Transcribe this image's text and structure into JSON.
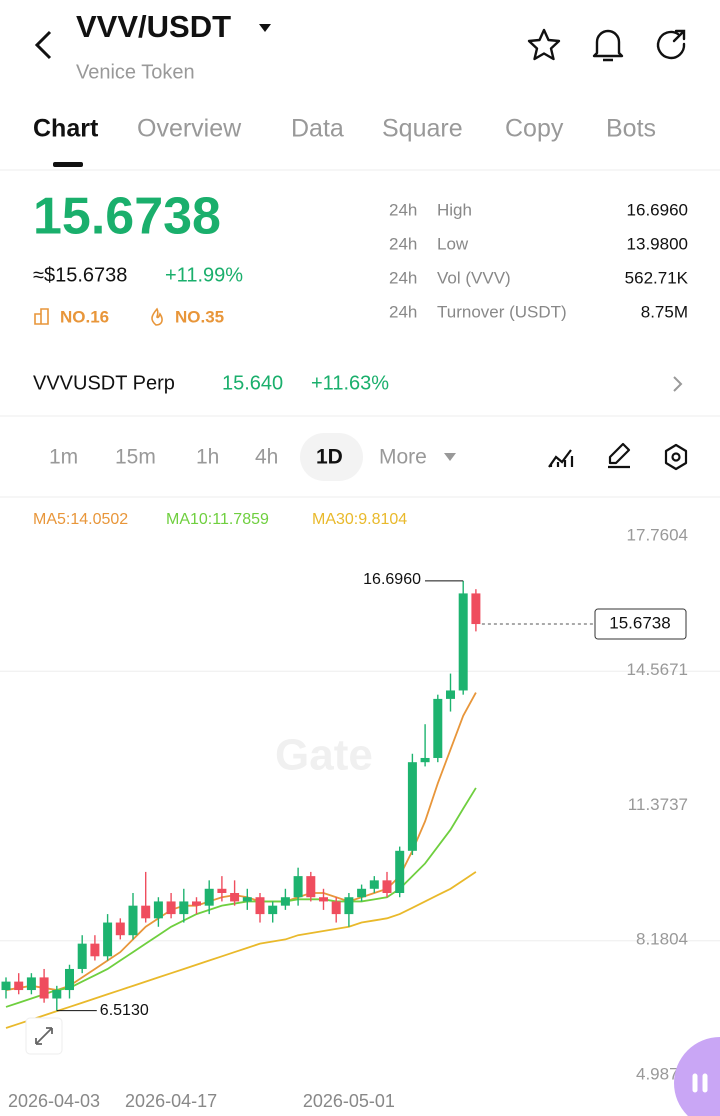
{
  "header": {
    "title": "VVV/USDT",
    "subtitle": "Venice Token"
  },
  "tabs": [
    "Chart",
    "Overview",
    "Data",
    "Square",
    "Copy",
    "Bots"
  ],
  "price": {
    "last": "15.6738",
    "usd": "≈$15.6738",
    "change": "+11.99%",
    "rank_volume": "NO.16",
    "rank_hot": "NO.35"
  },
  "stats": [
    {
      "period": "24h",
      "label": "High",
      "value": "16.6960"
    },
    {
      "period": "24h",
      "label": "Low",
      "value": "13.9800"
    },
    {
      "period": "24h",
      "label": "Vol (VVV)",
      "value": "562.71K"
    },
    {
      "period": "24h",
      "label": "Turnover (USDT)",
      "value": "8.75M"
    }
  ],
  "perp": {
    "name": "VVVUSDT Perp",
    "price": "15.640",
    "change": "+11.63%"
  },
  "intervals": [
    "1m",
    "15m",
    "1h",
    "4h",
    "1D",
    "More"
  ],
  "watermark": "Gate",
  "chart_data": {
    "type": "candlestick",
    "categories": [
      "2026-04-03",
      null,
      null,
      null,
      null,
      null,
      null,
      null,
      null,
      null,
      null,
      null,
      null,
      "2026-04-17",
      null,
      null,
      null,
      null,
      null,
      null,
      null,
      null,
      null,
      null,
      null,
      null,
      null,
      "2026-05-01",
      null,
      null,
      null,
      null,
      null,
      null,
      null,
      null,
      null,
      null
    ],
    "open": [
      7.0,
      7.2,
      7.0,
      7.3,
      6.8,
      7.0,
      7.5,
      8.1,
      7.8,
      8.6,
      8.3,
      9.0,
      8.7,
      9.1,
      8.8,
      9.1,
      9.0,
      9.4,
      9.3,
      9.1,
      9.2,
      8.8,
      9.0,
      9.2,
      9.7,
      9.2,
      9.1,
      8.8,
      9.2,
      9.4,
      9.6,
      9.3,
      10.3,
      12.4,
      12.5,
      13.9,
      14.1,
      16.4
    ],
    "high": [
      7.3,
      7.4,
      7.4,
      7.5,
      7.1,
      7.6,
      8.3,
      8.3,
      8.8,
      8.7,
      9.3,
      9.8,
      9.2,
      9.3,
      9.4,
      9.2,
      9.6,
      9.7,
      9.6,
      9.4,
      9.3,
      9.1,
      9.4,
      9.9,
      9.8,
      9.4,
      9.2,
      9.3,
      9.5,
      9.7,
      9.8,
      10.4,
      12.6,
      13.3,
      14.0,
      14.5,
      16.696,
      16.5
    ],
    "low": [
      6.8,
      6.9,
      6.9,
      6.7,
      6.513,
      6.8,
      7.4,
      7.7,
      7.7,
      8.2,
      8.2,
      8.6,
      8.5,
      8.7,
      8.6,
      8.8,
      8.8,
      9.1,
      9.0,
      8.9,
      8.6,
      8.6,
      8.9,
      9.0,
      9.1,
      8.9,
      8.6,
      8.5,
      9.1,
      9.3,
      9.2,
      9.2,
      10.2,
      12.3,
      12.4,
      13.6,
      14.0,
      15.5
    ],
    "close": [
      7.2,
      7.0,
      7.3,
      6.8,
      7.0,
      7.5,
      8.1,
      7.8,
      8.6,
      8.3,
      9.0,
      8.7,
      9.1,
      8.8,
      9.1,
      9.0,
      9.4,
      9.3,
      9.1,
      9.2,
      8.8,
      9.0,
      9.2,
      9.7,
      9.2,
      9.1,
      8.8,
      9.2,
      9.4,
      9.6,
      9.3,
      10.3,
      12.4,
      12.5,
      13.9,
      14.1,
      16.4,
      15.6738
    ],
    "up_color": "#1db36f",
    "down_color": "#ef4d5e",
    "series": [
      {
        "label": "MA5:14.0502",
        "color": "#e8963a",
        "values": [
          7.0,
          7.05,
          7.1,
          7.05,
          7.0,
          7.1,
          7.3,
          7.5,
          7.7,
          7.9,
          8.2,
          8.5,
          8.7,
          8.9,
          9.0,
          9.0,
          9.1,
          9.2,
          9.25,
          9.2,
          9.1,
          9.1,
          9.1,
          9.2,
          9.3,
          9.3,
          9.2,
          9.1,
          9.2,
          9.3,
          9.4,
          9.7,
          10.3,
          11.0,
          11.9,
          12.7,
          13.5,
          14.05
        ]
      },
      {
        "label": "MA10:11.7859",
        "color": "#6fcf3f",
        "values": [
          6.6,
          6.7,
          6.8,
          6.9,
          7.0,
          7.05,
          7.2,
          7.35,
          7.5,
          7.7,
          7.9,
          8.1,
          8.3,
          8.5,
          8.65,
          8.8,
          8.9,
          9.0,
          9.05,
          9.1,
          9.1,
          9.1,
          9.1,
          9.15,
          9.15,
          9.15,
          9.1,
          9.1,
          9.1,
          9.15,
          9.2,
          9.4,
          9.7,
          10.0,
          10.4,
          10.8,
          11.3,
          11.79
        ]
      },
      {
        "label": "MA30:9.8104",
        "color": "#e9b92b",
        "values": [
          6.1,
          6.2,
          6.3,
          6.4,
          6.5,
          6.6,
          6.7,
          6.8,
          6.9,
          7.0,
          7.1,
          7.2,
          7.3,
          7.4,
          7.5,
          7.6,
          7.7,
          7.8,
          7.9,
          8.0,
          8.1,
          8.15,
          8.2,
          8.3,
          8.35,
          8.4,
          8.45,
          8.5,
          8.6,
          8.65,
          8.7,
          8.8,
          8.95,
          9.1,
          9.25,
          9.4,
          9.6,
          9.8
        ]
      }
    ],
    "ylim": [
      4.987,
      17.7604
    ],
    "yticks": [
      17.7604,
      14.5671,
      11.3737,
      8.1804,
      {
        "value": 4.987,
        "label": "4.9870"
      }
    ],
    "high_label": {
      "value": 16.696,
      "label": "16.6960"
    },
    "low_label": {
      "value": 6.513,
      "label": "6.5130"
    },
    "last_label": {
      "value": 15.6738,
      "label": "15.6738"
    }
  }
}
